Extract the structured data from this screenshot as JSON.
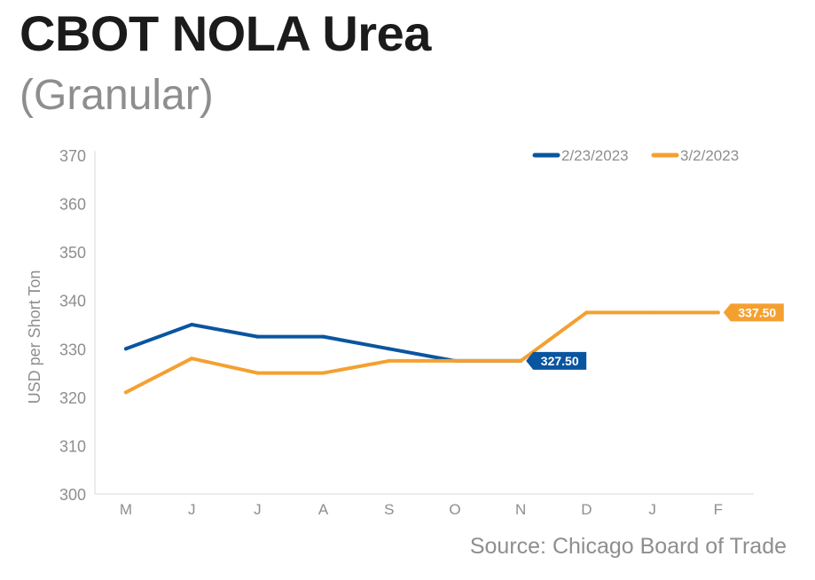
{
  "title": "CBOT NOLA Urea",
  "subtitle": "(Granular)",
  "source": "Source: Chicago Board of Trade",
  "colors": {
    "blue": "#0a55a0",
    "orange": "#f4a030"
  },
  "chart_data": {
    "type": "line",
    "categories": [
      "M",
      "J",
      "J",
      "A",
      "S",
      "O",
      "N",
      "D",
      "J",
      "F"
    ],
    "ylabel": "USD per Short Ton",
    "ylim": [
      300,
      370
    ],
    "yticks": [
      300,
      310,
      320,
      330,
      340,
      350,
      360,
      370
    ],
    "grid": false,
    "legend_position": "top-right",
    "series": [
      {
        "name": "2/23/2023",
        "color": "#0a55a0",
        "values": [
          330,
          335,
          332.5,
          332.5,
          330,
          327.5,
          327.5,
          null,
          null,
          null
        ],
        "end_label": "327.50"
      },
      {
        "name": "3/2/2023",
        "color": "#f4a030",
        "values": [
          321,
          328,
          325,
          325,
          327.5,
          327.5,
          327.5,
          337.5,
          337.5,
          337.5
        ],
        "end_label": "337.50"
      }
    ]
  }
}
